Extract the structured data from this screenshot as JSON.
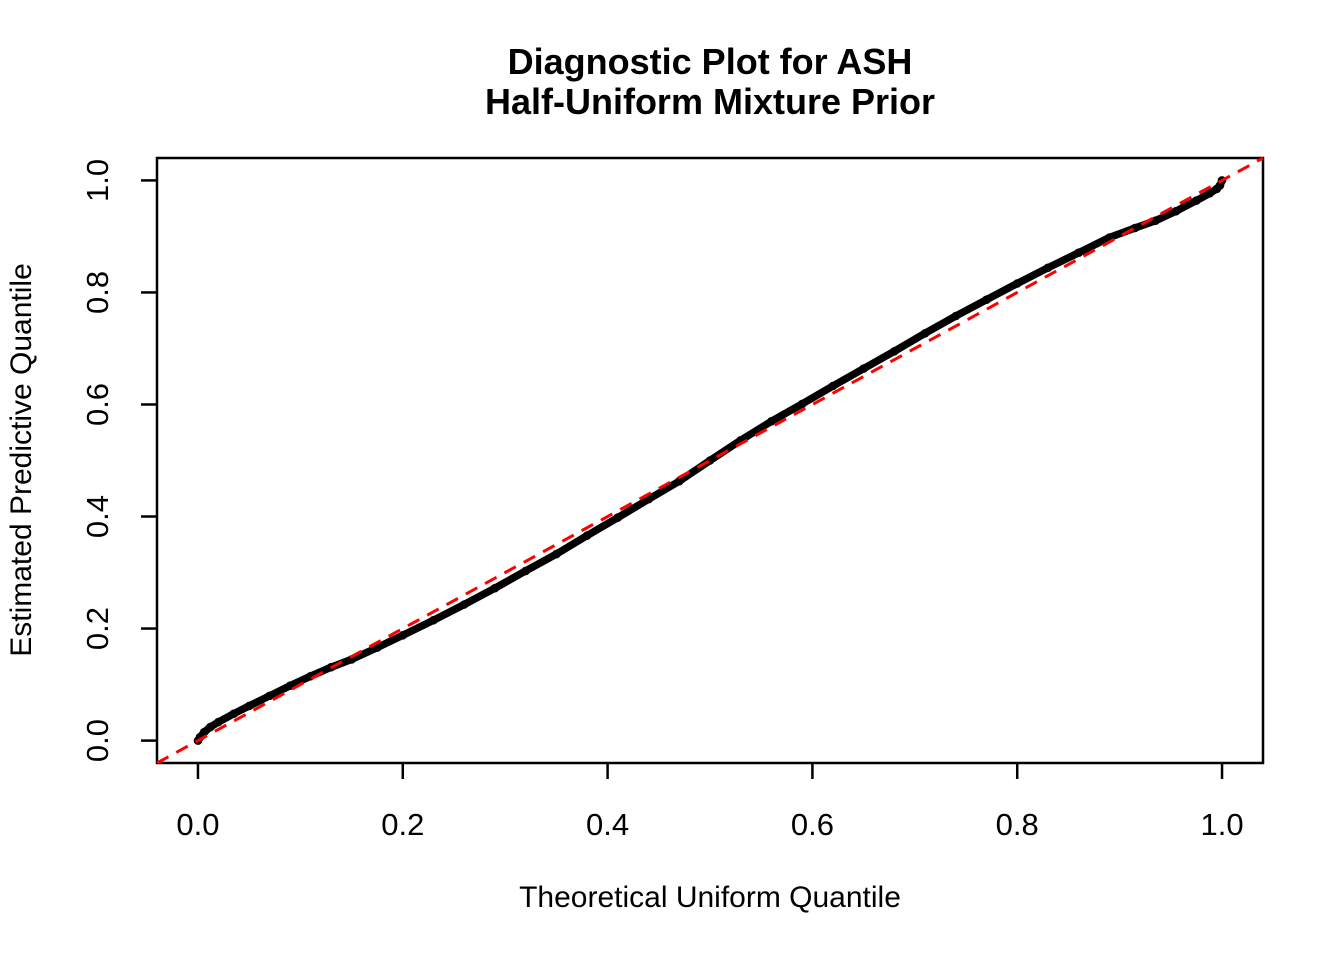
{
  "figure": {
    "title_line1": "Diagnostic Plot for ASH",
    "title_line2": "Half-Uniform Mixture Prior",
    "xlabel": "Theoretical Uniform Quantile",
    "ylabel": "Estimated Predictive Quantile"
  },
  "chart_data": {
    "type": "scatter",
    "title": "Diagnostic Plot for ASH Half-Uniform Mixture Prior",
    "xlabel": "Theoretical Uniform Quantile",
    "ylabel": "Estimated Predictive Quantile",
    "xlim": [
      -0.04,
      1.04
    ],
    "ylim": [
      -0.04,
      1.04
    ],
    "grid": false,
    "legend": null,
    "x_ticks": [
      0.0,
      0.2,
      0.4,
      0.6,
      0.8,
      1.0
    ],
    "y_ticks": [
      0.0,
      0.2,
      0.4,
      0.6,
      0.8,
      1.0
    ],
    "x_tick_labels": [
      "0.0",
      "0.2",
      "0.4",
      "0.6",
      "0.8",
      "1.0"
    ],
    "y_tick_labels": [
      "0.0",
      "0.2",
      "0.4",
      "0.6",
      "0.8",
      "1.0"
    ],
    "series": [
      {
        "name": "estimated-predictive-quantiles",
        "type": "points",
        "color": "#000000",
        "marker_radius": 4.3,
        "points": [
          [
            0.0,
            0.0
          ],
          [
            0.002,
            0.006
          ],
          [
            0.006,
            0.015
          ],
          [
            0.012,
            0.024
          ],
          [
            0.02,
            0.033
          ],
          [
            0.035,
            0.048
          ],
          [
            0.05,
            0.062
          ],
          [
            0.07,
            0.08
          ],
          [
            0.09,
            0.098
          ],
          [
            0.11,
            0.115
          ],
          [
            0.13,
            0.131
          ],
          [
            0.15,
            0.145
          ],
          [
            0.175,
            0.166
          ],
          [
            0.2,
            0.188
          ],
          [
            0.23,
            0.215
          ],
          [
            0.26,
            0.243
          ],
          [
            0.29,
            0.272
          ],
          [
            0.32,
            0.303
          ],
          [
            0.35,
            0.333
          ],
          [
            0.38,
            0.366
          ],
          [
            0.41,
            0.398
          ],
          [
            0.44,
            0.431
          ],
          [
            0.47,
            0.463
          ],
          [
            0.5,
            0.5
          ],
          [
            0.53,
            0.536
          ],
          [
            0.56,
            0.57
          ],
          [
            0.59,
            0.601
          ],
          [
            0.62,
            0.633
          ],
          [
            0.65,
            0.664
          ],
          [
            0.68,
            0.695
          ],
          [
            0.71,
            0.727
          ],
          [
            0.74,
            0.758
          ],
          [
            0.77,
            0.787
          ],
          [
            0.8,
            0.816
          ],
          [
            0.83,
            0.844
          ],
          [
            0.86,
            0.871
          ],
          [
            0.89,
            0.898
          ],
          [
            0.915,
            0.915
          ],
          [
            0.935,
            0.928
          ],
          [
            0.955,
            0.945
          ],
          [
            0.975,
            0.964
          ],
          [
            0.988,
            0.977
          ],
          [
            0.995,
            0.985
          ],
          [
            0.998,
            0.991
          ],
          [
            1.0,
            1.0
          ]
        ]
      },
      {
        "name": "reference-identity-line",
        "type": "line",
        "equation": "y = x",
        "style": "dashed",
        "color": "#FF0000",
        "from": [
          -0.04,
          -0.04
        ],
        "to": [
          1.04,
          1.04
        ]
      }
    ]
  },
  "colors": {
    "background": "#FFFFFF",
    "axis": "#000000",
    "points": "#000000",
    "reference_line": "#FF0000"
  }
}
